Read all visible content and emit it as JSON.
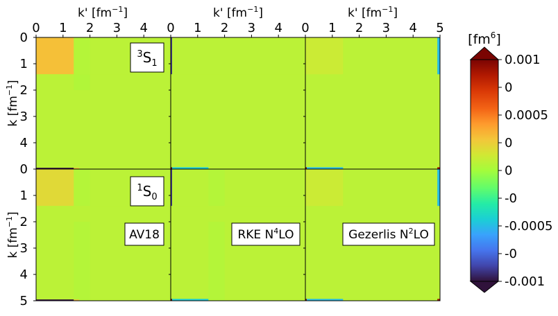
{
  "chart_data": {
    "type": "heatmap",
    "colorbar": {
      "unit_base": "[fm",
      "unit_exp": "6",
      "unit_close": "]",
      "ticks": [
        "0.001",
        "0",
        "0.0005",
        "0",
        "0",
        "-0",
        "-0.0005",
        "-0",
        "-0.001"
      ],
      "range": [
        -0.001,
        0.001
      ],
      "colormap": "turbo",
      "extend": "both"
    },
    "xlabel": {
      "base": "k' [fm",
      "exp": "−1",
      "close": "]"
    },
    "ylabel": {
      "base": "k [fm",
      "exp": "−1",
      "close": "]"
    },
    "xticks_inner": [
      "0",
      "1",
      "2",
      "3",
      "4"
    ],
    "xtick_last": "5",
    "yticks_top": [
      "0",
      "1",
      "2",
      "3",
      "4"
    ],
    "yticks_bottom": [
      "0",
      "1",
      "2",
      "3",
      "4",
      "5"
    ],
    "xlim": [
      0,
      5
    ],
    "ylim": [
      0,
      5
    ],
    "row_labels": [
      {
        "sup": "3",
        "base": "S",
        "sub": "1"
      },
      {
        "sup": "1",
        "base": "S",
        "sub": "0"
      }
    ],
    "col_labels": [
      {
        "text": "AV18",
        "sup": ""
      },
      {
        "text": "RKE N",
        "sup": "4",
        "tail": "LO"
      },
      {
        "text": "Gezerlis N",
        "sup": "2",
        "tail": "LO"
      }
    ],
    "panels": [
      {
        "row": 0,
        "col": 0,
        "blocks": [
          {
            "x": [
              0,
              1.4
            ],
            "y": [
              0,
              1.4
            ],
            "v": 0.0003
          },
          {
            "x": [
              1.4,
              2.0
            ],
            "y": [
              0,
              1.4
            ],
            "v": 5e-05
          },
          {
            "x": [
              0,
              5
            ],
            "y": [
              1.4,
              2.0
            ],
            "v": 7e-05
          },
          {
            "x": [
              1.4,
              2.0
            ],
            "y": [
              1.4,
              2.0
            ],
            "v": 4e-05
          },
          {
            "x": [
              0,
              1.4
            ],
            "y": [
              4.95,
              5
            ],
            "v": -0.001
          },
          {
            "x": [
              1.4,
              1.6
            ],
            "y": [
              4.95,
              5
            ],
            "v": 0.0003
          }
        ]
      },
      {
        "row": 0,
        "col": 1,
        "blocks": [
          {
            "x": [
              0,
              0.05
            ],
            "y": [
              0,
              1.4
            ],
            "v": -0.0009
          },
          {
            "x": [
              0,
              5
            ],
            "y": [
              1.4,
              2.4
            ],
            "v": 7e-05
          },
          {
            "x": [
              0,
              1.4
            ],
            "y": [
              4.93,
              5
            ],
            "v": -0.00045
          },
          {
            "x": [
              0,
              0.05
            ],
            "y": [
              4.93,
              5
            ],
            "v": 0.001
          }
        ]
      },
      {
        "row": 0,
        "col": 2,
        "blocks": [
          {
            "x": [
              0,
              1.4
            ],
            "y": [
              0,
              1.4
            ],
            "v": 0.00012
          },
          {
            "x": [
              4.9,
              5
            ],
            "y": [
              0,
              1.4
            ],
            "v": -0.0005
          },
          {
            "x": [
              0,
              1.4
            ],
            "y": [
              4.93,
              5
            ],
            "v": -0.0005
          },
          {
            "x": [
              0,
              0.05
            ],
            "y": [
              4.93,
              5
            ],
            "v": 0.001
          },
          {
            "x": [
              4.9,
              5
            ],
            "y": [
              4.93,
              5
            ],
            "v": 0.0009
          }
        ]
      },
      {
        "row": 1,
        "col": 0,
        "blocks": [
          {
            "x": [
              0,
              1.4
            ],
            "y": [
              0,
              1.4
            ],
            "v": 0.0002
          },
          {
            "x": [
              1.4,
              2.0
            ],
            "y": [
              0,
              5
            ],
            "v": 5e-05
          },
          {
            "x": [
              0,
              5
            ],
            "y": [
              1.4,
              2.0
            ],
            "v": 7e-05
          },
          {
            "x": [
              0,
              1.4
            ],
            "y": [
              4.95,
              5
            ],
            "v": -0.001
          },
          {
            "x": [
              1.4,
              1.6
            ],
            "y": [
              4.95,
              5
            ],
            "v": 0.0003
          }
        ]
      },
      {
        "row": 1,
        "col": 1,
        "blocks": [
          {
            "x": [
              0,
              0.05
            ],
            "y": [
              0,
              1.4
            ],
            "v": -0.0009
          },
          {
            "x": [
              1.4,
              2.0
            ],
            "y": [
              0,
              5
            ],
            "v": 5e-05
          },
          {
            "x": [
              0,
              5
            ],
            "y": [
              1.4,
              2.0
            ],
            "v": 7e-05
          },
          {
            "x": [
              0,
              1.4
            ],
            "y": [
              4.93,
              5
            ],
            "v": -0.00045
          },
          {
            "x": [
              0,
              0.05
            ],
            "y": [
              4.93,
              5
            ],
            "v": 0.001
          }
        ]
      },
      {
        "row": 1,
        "col": 2,
        "blocks": [
          {
            "x": [
              0,
              1.4
            ],
            "y": [
              0,
              1.4
            ],
            "v": 0.00012
          },
          {
            "x": [
              4.9,
              5
            ],
            "y": [
              0,
              1.4
            ],
            "v": -0.0005
          },
          {
            "x": [
              0,
              1.4
            ],
            "y": [
              4.93,
              5
            ],
            "v": -0.0005
          },
          {
            "x": [
              0,
              0.05
            ],
            "y": [
              4.93,
              5
            ],
            "v": 0.001
          },
          {
            "x": [
              4.9,
              5
            ],
            "y": [
              4.93,
              5
            ],
            "v": 0.0009
          }
        ]
      }
    ],
    "background_value": 7e-05
  }
}
